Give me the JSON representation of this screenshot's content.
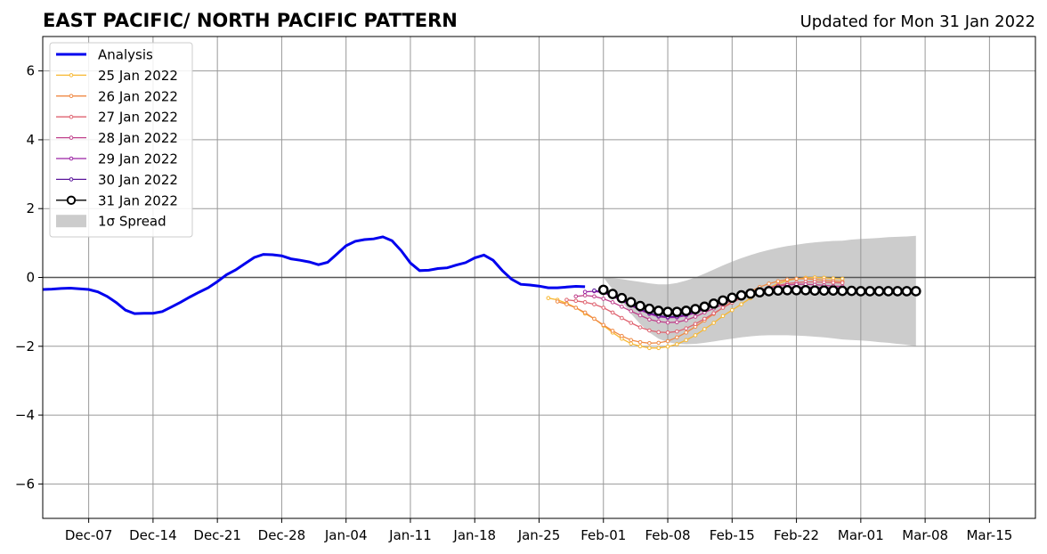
{
  "chart_data": {
    "type": "line",
    "title": "EAST PACIFIC/ NORTH PACIFIC PATTERN",
    "subtitle": "Updated for Mon 31 Jan 2022",
    "xlabel": "",
    "ylabel": "",
    "xlim": [
      "2021-12-02",
      "2022-03-20"
    ],
    "ylim": [
      -7,
      7
    ],
    "x_tick_labels": [
      "Dec-07",
      "Dec-14",
      "Dec-21",
      "Dec-28",
      "Jan-04",
      "Jan-11",
      "Jan-18",
      "Jan-25",
      "Feb-01",
      "Feb-08",
      "Feb-15",
      "Feb-22",
      "Mar-01",
      "Mar-08",
      "Mar-15"
    ],
    "x_tick_dates": [
      "2021-12-07",
      "2021-12-14",
      "2021-12-21",
      "2021-12-28",
      "2022-01-04",
      "2022-01-11",
      "2022-01-18",
      "2022-01-25",
      "2022-02-01",
      "2022-02-08",
      "2022-02-15",
      "2022-02-22",
      "2022-03-01",
      "2022-03-08",
      "2022-03-15"
    ],
    "y_ticks": [
      -6,
      -4,
      -2,
      0,
      2,
      4,
      6
    ],
    "y_tick_labels": [
      "−6",
      "−4",
      "−2",
      "0",
      "2",
      "4",
      "6"
    ],
    "grid": true,
    "legend_position": "top-left",
    "colors": {
      "analysis": "#0000ee",
      "25 Jan 2022": "#f7b731",
      "26 Jan 2022": "#f08a45",
      "27 Jan 2022": "#df6370",
      "28 Jan 2022": "#c0408b",
      "29 Jan 2022": "#9b22a4",
      "30 Jan 2022": "#5a169a",
      "31 Jan 2022": "#000000",
      "spread": "#cccccc",
      "grid": "#999999"
    },
    "series": [
      {
        "name": "Analysis",
        "style": "thick-line",
        "x": [
          "2021-12-02",
          "2021-12-03",
          "2021-12-04",
          "2021-12-05",
          "2021-12-06",
          "2021-12-07",
          "2021-12-08",
          "2021-12-09",
          "2021-12-10",
          "2021-12-11",
          "2021-12-12",
          "2021-12-13",
          "2021-12-14",
          "2021-12-15",
          "2021-12-16",
          "2021-12-17",
          "2021-12-18",
          "2021-12-19",
          "2021-12-20",
          "2021-12-21",
          "2021-12-22",
          "2021-12-23",
          "2021-12-24",
          "2021-12-25",
          "2021-12-26",
          "2021-12-27",
          "2021-12-28",
          "2021-12-29",
          "2021-12-30",
          "2021-12-31",
          "2022-01-01",
          "2022-01-02",
          "2022-01-03",
          "2022-01-04",
          "2022-01-05",
          "2022-01-06",
          "2022-01-07",
          "2022-01-08",
          "2022-01-09",
          "2022-01-10",
          "2022-01-11",
          "2022-01-12",
          "2022-01-13",
          "2022-01-14",
          "2022-01-15",
          "2022-01-16",
          "2022-01-17",
          "2022-01-18",
          "2022-01-19",
          "2022-01-20",
          "2022-01-21",
          "2022-01-22",
          "2022-01-23",
          "2022-01-24",
          "2022-01-25",
          "2022-01-26",
          "2022-01-27",
          "2022-01-28",
          "2022-01-29",
          "2022-01-30"
        ],
        "values": [
          -0.35,
          -0.34,
          -0.32,
          -0.31,
          -0.33,
          -0.35,
          -0.42,
          -0.55,
          -0.73,
          -0.95,
          -1.05,
          -1.04,
          -1.04,
          -0.99,
          -0.86,
          -0.72,
          -0.57,
          -0.43,
          -0.3,
          -0.12,
          0.08,
          0.22,
          0.4,
          0.58,
          0.67,
          0.66,
          0.63,
          0.54,
          0.5,
          0.45,
          0.37,
          0.44,
          0.68,
          0.92,
          1.05,
          1.1,
          1.12,
          1.18,
          1.07,
          0.78,
          0.42,
          0.2,
          0.21,
          0.26,
          0.28,
          0.36,
          0.43,
          0.57,
          0.65,
          0.5,
          0.2,
          -0.05,
          -0.2,
          -0.22,
          -0.25,
          -0.3,
          -0.3,
          -0.28,
          -0.26,
          -0.27
        ]
      },
      {
        "name": "25 Jan 2022",
        "start": "2022-01-26",
        "values": [
          -0.6,
          -0.65,
          -0.75,
          -0.88,
          -1.05,
          -1.2,
          -1.4,
          -1.6,
          -1.78,
          -1.92,
          -2.0,
          -2.05,
          -2.05,
          -2.01,
          -1.94,
          -1.82,
          -1.68,
          -1.5,
          -1.32,
          -1.12,
          -0.95,
          -0.78,
          -0.6,
          -0.44,
          -0.3,
          -0.18,
          -0.09,
          -0.04,
          -0.01,
          0.0,
          -0.01,
          -0.03,
          -0.04
        ]
      },
      {
        "name": "26 Jan 2022",
        "start": "2022-01-27",
        "values": [
          -0.7,
          -0.78,
          -0.88,
          -1.02,
          -1.2,
          -1.38,
          -1.55,
          -1.7,
          -1.82,
          -1.88,
          -1.91,
          -1.9,
          -1.85,
          -1.74,
          -1.6,
          -1.43,
          -1.25,
          -1.06,
          -0.88,
          -0.7,
          -0.54,
          -0.4,
          -0.28,
          -0.18,
          -0.11,
          -0.06,
          -0.04,
          -0.04,
          -0.06,
          -0.08,
          -0.1,
          -0.12
        ]
      },
      {
        "name": "27 Jan 2022",
        "start": "2022-01-28",
        "values": [
          -0.65,
          -0.68,
          -0.72,
          -0.78,
          -0.88,
          -1.02,
          -1.18,
          -1.32,
          -1.45,
          -1.54,
          -1.59,
          -1.6,
          -1.57,
          -1.48,
          -1.35,
          -1.2,
          -1.04,
          -0.88,
          -0.73,
          -0.6,
          -0.48,
          -0.38,
          -0.3,
          -0.23,
          -0.18,
          -0.15,
          -0.13,
          -0.13,
          -0.14,
          -0.15,
          -0.16
        ]
      },
      {
        "name": "28 Jan 2022",
        "start": "2022-01-29",
        "values": [
          -0.55,
          -0.52,
          -0.55,
          -0.62,
          -0.72,
          -0.85,
          -0.98,
          -1.1,
          -1.22,
          -1.28,
          -1.31,
          -1.3,
          -1.24,
          -1.14,
          -1.02,
          -0.9,
          -0.78,
          -0.66,
          -0.55,
          -0.45,
          -0.37,
          -0.3,
          -0.25,
          -0.22,
          -0.2,
          -0.2,
          -0.21,
          -0.23,
          -0.25,
          -0.26
        ]
      },
      {
        "name": "29 Jan 2022",
        "start": "2022-01-30",
        "values": [
          -0.42,
          -0.4,
          -0.45,
          -0.55,
          -0.68,
          -0.82,
          -0.95,
          -1.06,
          -1.14,
          -1.17,
          -1.16,
          -1.11,
          -1.03,
          -0.93,
          -0.82,
          -0.71,
          -0.61,
          -0.52,
          -0.45,
          -0.39,
          -0.35,
          -0.32,
          -0.3,
          -0.29,
          -0.29,
          -0.29,
          -0.3,
          -0.3,
          -0.3
        ]
      },
      {
        "name": "30 Jan 2022",
        "start": "2022-01-31",
        "values": [
          -0.38,
          -0.42,
          -0.52,
          -0.65,
          -0.79,
          -0.92,
          -1.03,
          -1.11,
          -1.14,
          -1.13,
          -1.08,
          -1.0,
          -0.9,
          -0.79,
          -0.69,
          -0.6,
          -0.52,
          -0.46,
          -0.41,
          -0.38,
          -0.36,
          -0.35,
          -0.35,
          -0.36,
          -0.37,
          -0.38,
          -0.38,
          -0.39
        ]
      },
      {
        "name": "31 Jan 2022",
        "start": "2022-02-01",
        "values": [
          -0.36,
          -0.48,
          -0.6,
          -0.72,
          -0.83,
          -0.91,
          -0.97,
          -1.0,
          -1.0,
          -0.97,
          -0.92,
          -0.85,
          -0.76,
          -0.67,
          -0.59,
          -0.52,
          -0.47,
          -0.43,
          -0.4,
          -0.38,
          -0.37,
          -0.37,
          -0.37,
          -0.38,
          -0.38,
          -0.38,
          -0.39,
          -0.39,
          -0.4,
          -0.4,
          -0.4,
          -0.4,
          -0.4,
          -0.4,
          -0.4
        ]
      }
    ],
    "spread": {
      "name": "1σ Spread",
      "start": "2022-02-01",
      "upper": [
        0,
        -0.02,
        -0.05,
        -0.09,
        -0.13,
        -0.17,
        -0.2,
        -0.2,
        -0.16,
        -0.09,
        0.0,
        0.11,
        0.23,
        0.35,
        0.46,
        0.56,
        0.65,
        0.73,
        0.8,
        0.86,
        0.91,
        0.95,
        0.99,
        1.02,
        1.04,
        1.06,
        1.07,
        1.1,
        1.12,
        1.13,
        1.15,
        1.17,
        1.18,
        1.19,
        1.21
      ],
      "lower": [
        0,
        -0.35,
        -0.7,
        -1.05,
        -1.35,
        -1.6,
        -1.78,
        -1.88,
        -1.93,
        -1.94,
        -1.93,
        -1.9,
        -1.86,
        -1.82,
        -1.78,
        -1.74,
        -1.71,
        -1.69,
        -1.68,
        -1.68,
        -1.68,
        -1.69,
        -1.7,
        -1.72,
        -1.74,
        -1.77,
        -1.8,
        -1.82,
        -1.83,
        -1.85,
        -1.88,
        -1.9,
        -1.93,
        -1.96,
        -2.0
      ]
    },
    "legend": [
      "Analysis",
      "25 Jan 2022",
      "26 Jan 2022",
      "27 Jan 2022",
      "28 Jan 2022",
      "29 Jan 2022",
      "30 Jan 2022",
      "31 Jan 2022",
      "1σ Spread"
    ]
  }
}
